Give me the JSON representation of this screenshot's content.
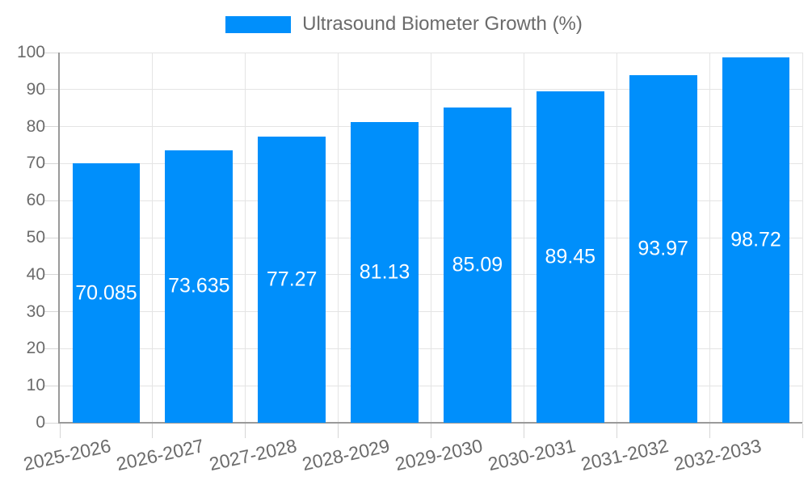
{
  "chart_data": {
    "type": "bar",
    "title": "",
    "legend_label": "Ultrasound Biometer Growth (%)",
    "legend_position": "top",
    "categories": [
      "2025-2026",
      "2026-2027",
      "2027-2028",
      "2028-2029",
      "2029-2030",
      "2030-2031",
      "2031-2032",
      "2032-2033"
    ],
    "values": [
      70.085,
      73.635,
      77.27,
      81.13,
      85.09,
      89.45,
      93.97,
      98.72
    ],
    "value_labels": [
      "70.085",
      "73.635",
      "77.27",
      "81.13",
      "85.09",
      "89.45",
      "93.97",
      "98.72"
    ],
    "xlabel": "",
    "ylabel": "",
    "ylim": [
      0,
      100
    ],
    "yticks": [
      0,
      10,
      20,
      30,
      40,
      50,
      60,
      70,
      80,
      90,
      100
    ],
    "grid": true,
    "value_labels_position": "center-inside-bar",
    "x_label_rotation_deg": -12.5,
    "colors": {
      "bar": "#008FFB",
      "grid": "#e4e4e4",
      "tick": "#d6d6d6",
      "axis": "#9a9a9a",
      "text": "#6b6b6b",
      "value_text": "#ffffff",
      "background": "#ffffff"
    }
  }
}
